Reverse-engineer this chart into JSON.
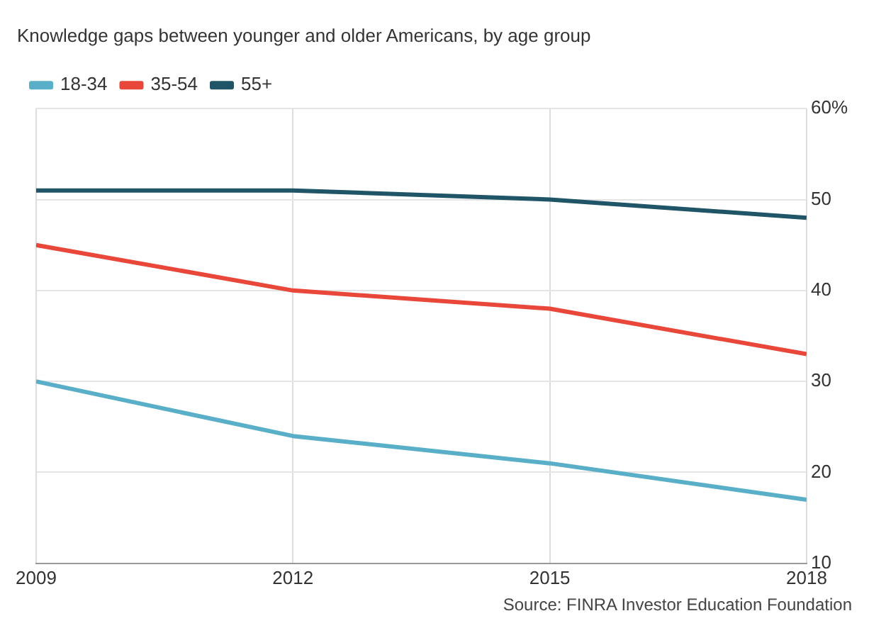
{
  "chart_data": {
    "type": "line",
    "title": "Knowledge gaps between younger and older Americans, by age group",
    "x": [
      2009,
      2012,
      2015,
      2018
    ],
    "series": [
      {
        "name": "18-34",
        "color": "#5aafc8",
        "values": [
          30,
          24,
          21,
          17
        ]
      },
      {
        "name": "35-54",
        "color": "#e8473a",
        "values": [
          45,
          40,
          38,
          33
        ]
      },
      {
        "name": "55+",
        "color": "#1f5566",
        "values": [
          51,
          51,
          50,
          48
        ]
      }
    ],
    "xlim": [
      2009,
      2018
    ],
    "xticks": [
      2009,
      2012,
      2015,
      2018
    ],
    "ylim": [
      10,
      60
    ],
    "yticks": [
      10,
      20,
      30,
      40,
      50,
      {
        "value": 60,
        "label": "60%"
      }
    ],
    "grid": true,
    "legend": "top left",
    "marker": "none",
    "line_style": "solid",
    "annotations": [
      "Source: FINRA Investor Education Foundation"
    ]
  }
}
